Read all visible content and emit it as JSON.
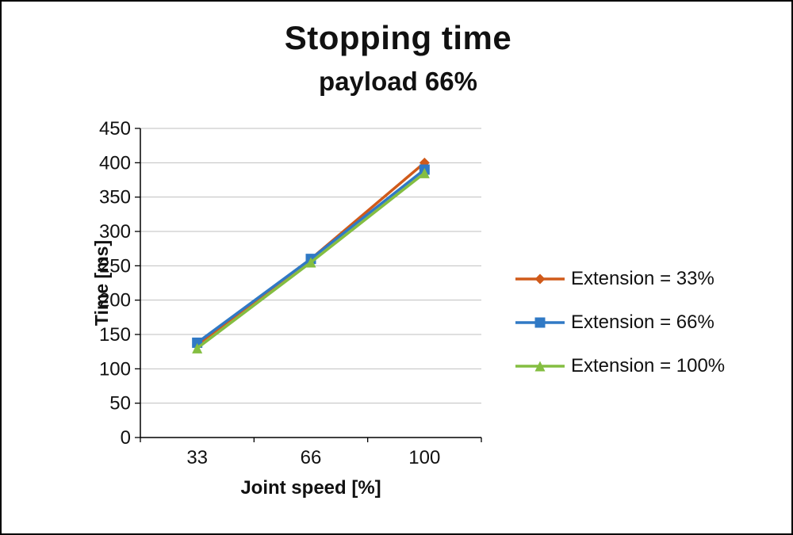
{
  "chart_data": {
    "type": "line",
    "title": "Stopping time",
    "subtitle": "payload 66%",
    "xlabel": "Joint speed [%]",
    "ylabel": "Time [ms]",
    "categories": [
      "33",
      "66",
      "100"
    ],
    "ylim": [
      0,
      450
    ],
    "ytick_step": 50,
    "grid": "horizontal",
    "legend_position": "right",
    "gridline_color": "#BFBFBF",
    "axis_color": "#000000",
    "series": [
      {
        "name": "Extension = 33%",
        "values": [
          135,
          260,
          400
        ],
        "color": "#D05A1A",
        "marker": "diamond"
      },
      {
        "name": "Extension = 66%",
        "values": [
          138,
          260,
          390
        ],
        "color": "#3079C5",
        "marker": "square"
      },
      {
        "name": "Extension = 100%",
        "values": [
          130,
          255,
          385
        ],
        "color": "#84BE41",
        "marker": "triangle"
      }
    ]
  }
}
